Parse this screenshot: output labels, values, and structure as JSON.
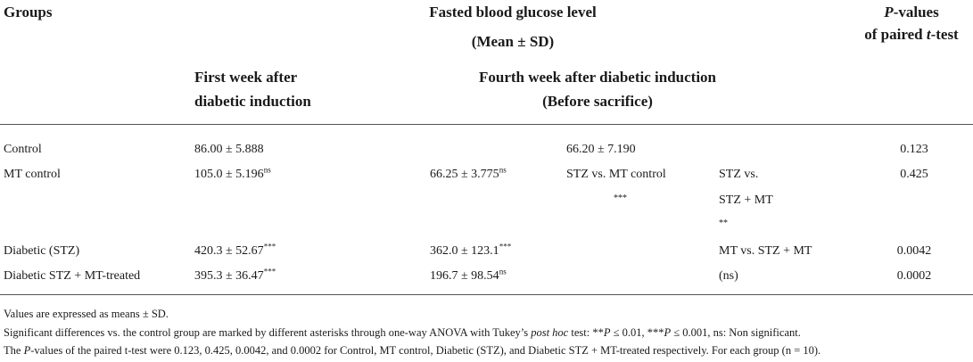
{
  "headers": {
    "groups": "Groups",
    "fasted_line1": "Fasted blood glucose level",
    "fasted_line2": "(Mean ± SD)",
    "p_line1_italic": "P",
    "p_line1_rest": "-values",
    "p_line2_pre": "of paired ",
    "p_line2_italic": "t",
    "p_line2_post": "-test",
    "first_week_line1": "First week after",
    "first_week_line2": "diabetic induction",
    "fourth_week_line1": "Fourth week after diabetic induction",
    "fourth_week_line2": "(Before sacrifice)"
  },
  "rows": [
    {
      "group": "Control",
      "first": "86.00 ± 5.888",
      "first_sup": "",
      "fourth": "66.20 ± 7.190",
      "fourth_sup": "",
      "p": "0.123"
    },
    {
      "group": "MT control",
      "first": "105.0 ± 5.196",
      "first_sup": "ns",
      "fourth": "66.25 ± 3.775",
      "fourth_sup": "ns",
      "p": "0.425",
      "cmp1": "STZ vs. MT control",
      "cmp1_sig": "***",
      "cmp2_l1": "STZ vs.",
      "cmp2_l2": "STZ + MT",
      "cmp2_sig": "**"
    },
    {
      "group": "Diabetic (STZ)",
      "first": "420.3 ± 52.67",
      "first_sup": "***",
      "fourth": "362.0 ± 123.1",
      "fourth_sup": "***",
      "p": "0.0042",
      "cmp3": "MT vs. STZ + MT"
    },
    {
      "group": "Diabetic STZ + MT-treated",
      "first": "395.3 ± 36.47",
      "first_sup": "***",
      "fourth": "196.7 ± 98.54",
      "fourth_sup": "ns",
      "p": "0.0002",
      "cmp3_sig": "(ns)"
    }
  ],
  "notes": {
    "line1": "Values are expressed as means ± SD.",
    "line2_a": "Significant differences vs. the control group are marked by different asterisks through one-way ANOVA with Tukey’s ",
    "line2_italic": "post hoc",
    "line2_b": " test: **",
    "line2_p1": "P",
    "line2_c": " ≤ 0.01, ***",
    "line2_p2": "P",
    "line2_d": " ≤ 0.001, ns: Non significant.",
    "line3_a": "The ",
    "line3_italic": "P",
    "line3_b": "-values of the paired t-test were 0.123, 0.425, 0.0042, and 0.0002 for Control, MT control, Diabetic (STZ), and Diabetic STZ + MT-treated respectively. For each group (n = 10)."
  }
}
